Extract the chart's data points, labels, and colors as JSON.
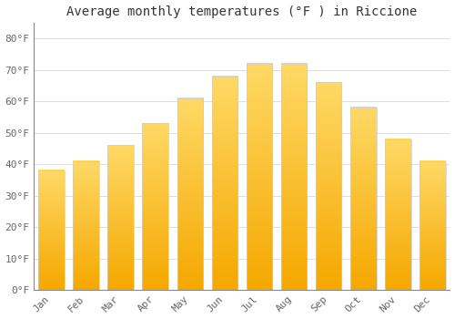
{
  "months": [
    "Jan",
    "Feb",
    "Mar",
    "Apr",
    "May",
    "Jun",
    "Jul",
    "Aug",
    "Sep",
    "Oct",
    "Nov",
    "Dec"
  ],
  "values": [
    38,
    41,
    46,
    53,
    61,
    68,
    72,
    72,
    66,
    58,
    48,
    41
  ],
  "bar_color_top": "#FFD966",
  "bar_color_bottom": "#F5A800",
  "bar_edge_color": "#FFFFFF",
  "title": "Average monthly temperatures (°F ) in Riccione",
  "ylim": [
    0,
    85
  ],
  "yticks": [
    0,
    10,
    20,
    30,
    40,
    50,
    60,
    70,
    80
  ],
  "ytick_labels": [
    "0°F",
    "10°F",
    "20°F",
    "30°F",
    "40°F",
    "50°F",
    "60°F",
    "70°F",
    "80°F"
  ],
  "background_color": "#FFFFFF",
  "grid_color": "#DDDDDD",
  "title_fontsize": 10,
  "tick_fontsize": 8,
  "font_family": "monospace",
  "bar_width": 0.75
}
